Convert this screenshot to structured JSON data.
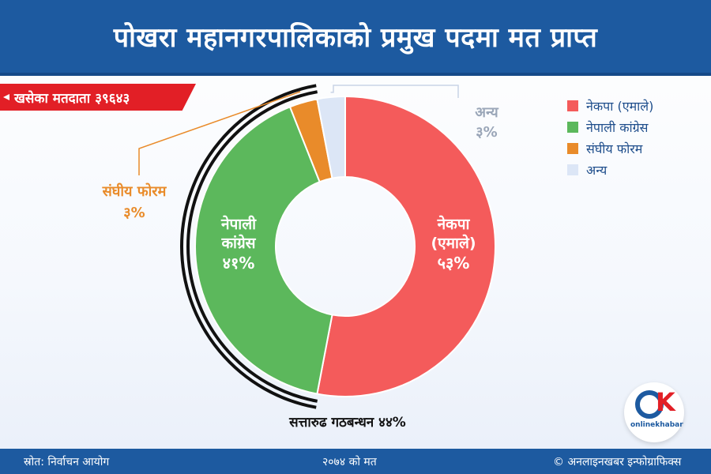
{
  "header": {
    "title": "पोखरा महानगरपालिकाको प्रमुख पदमा मत प्राप्त"
  },
  "badge": {
    "text": "खसेका मतदाता ३९६४३"
  },
  "chart_data": {
    "type": "pie",
    "categories": [
      "नेकपा (एमाले)",
      "नेपाली कांग्रेस",
      "संघीय फोरम",
      "अन्य"
    ],
    "values": [
      53,
      41,
      3,
      3
    ],
    "colors": [
      "#f45b5b",
      "#5cb85c",
      "#e98b2a",
      "#dce6f6"
    ],
    "slice_labels": [
      {
        "lines": [
          "नेकपा",
          "(एमाले)"
        ],
        "pct": "५३%"
      },
      {
        "lines": [
          "नेपाली",
          "कांग्रेस"
        ],
        "pct": "४१%"
      },
      {
        "lines": [
          "संघीय फोरम"
        ],
        "pct": "३%"
      },
      {
        "lines": [
          "अन्य"
        ],
        "pct": "३%"
      }
    ],
    "annotation": "सत्तारुढ गठबन्धन ४४%",
    "legend_position": "top-right"
  },
  "legend": [
    {
      "label": "नेकपा (एमाले)",
      "color": "#f45b5b"
    },
    {
      "label": "नेपाली कांग्रेस",
      "color": "#5cb85c"
    },
    {
      "label": "संघीय फोरम",
      "color": "#e98b2a"
    },
    {
      "label": "अन्य",
      "color": "#dce6f6"
    }
  ],
  "footer": {
    "source": "स्रोत: निर्वाचन आयोग",
    "election": "२०७४ को मत",
    "credit": "© अनलाइनखबर इन्फोग्राफिक्स"
  },
  "logo": {
    "text": "onlinekhabar"
  }
}
